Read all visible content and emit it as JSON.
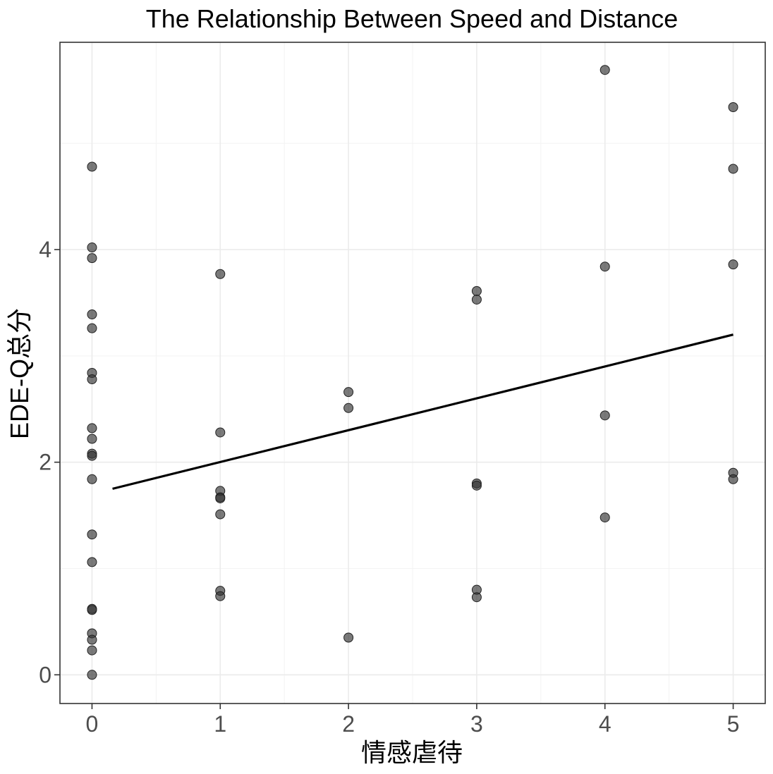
{
  "chart_data": {
    "type": "scatter",
    "title": "The Relationship Between Speed and Distance",
    "xlabel": "情感虐待",
    "ylabel": "EDE-Q总分",
    "xlim": [
      -0.25,
      5.25
    ],
    "ylim": [
      -0.27,
      5.95
    ],
    "x_ticks": [
      0,
      1,
      2,
      3,
      4,
      5
    ],
    "y_ticks": [
      0,
      2,
      4
    ],
    "x_tick_labels": [
      "0",
      "1",
      "2",
      "3",
      "4",
      "5"
    ],
    "y_tick_labels": [
      "0",
      "2",
      "4"
    ],
    "grid": true,
    "points": [
      {
        "x": 0,
        "y": 4.78
      },
      {
        "x": 0,
        "y": 4.02
      },
      {
        "x": 0,
        "y": 3.92
      },
      {
        "x": 0,
        "y": 3.39
      },
      {
        "x": 0,
        "y": 3.26
      },
      {
        "x": 0,
        "y": 2.84
      },
      {
        "x": 0,
        "y": 2.78
      },
      {
        "x": 0,
        "y": 2.32
      },
      {
        "x": 0,
        "y": 2.22
      },
      {
        "x": 0,
        "y": 2.08
      },
      {
        "x": 0,
        "y": 2.06
      },
      {
        "x": 0,
        "y": 1.84
      },
      {
        "x": 0,
        "y": 1.32
      },
      {
        "x": 0,
        "y": 1.06
      },
      {
        "x": 0,
        "y": 0.62
      },
      {
        "x": 0,
        "y": 0.61
      },
      {
        "x": 0,
        "y": 0.39
      },
      {
        "x": 0,
        "y": 0.33
      },
      {
        "x": 0,
        "y": 0.23
      },
      {
        "x": 0,
        "y": 0.0
      },
      {
        "x": 1,
        "y": 3.77
      },
      {
        "x": 1,
        "y": 2.28
      },
      {
        "x": 1,
        "y": 1.73
      },
      {
        "x": 1,
        "y": 1.67
      },
      {
        "x": 1,
        "y": 1.66
      },
      {
        "x": 1,
        "y": 1.51
      },
      {
        "x": 1,
        "y": 0.79
      },
      {
        "x": 1,
        "y": 0.74
      },
      {
        "x": 2,
        "y": 2.66
      },
      {
        "x": 2,
        "y": 2.51
      },
      {
        "x": 2,
        "y": 0.35
      },
      {
        "x": 3,
        "y": 3.61
      },
      {
        "x": 3,
        "y": 3.53
      },
      {
        "x": 3,
        "y": 1.8
      },
      {
        "x": 3,
        "y": 1.78
      },
      {
        "x": 3,
        "y": 0.8
      },
      {
        "x": 3,
        "y": 0.73
      },
      {
        "x": 4,
        "y": 5.69
      },
      {
        "x": 4,
        "y": 3.84
      },
      {
        "x": 4,
        "y": 2.44
      },
      {
        "x": 4,
        "y": 1.48
      },
      {
        "x": 5,
        "y": 5.34
      },
      {
        "x": 5,
        "y": 4.76
      },
      {
        "x": 5,
        "y": 3.86
      },
      {
        "x": 5,
        "y": 1.9
      },
      {
        "x": 5,
        "y": 1.84
      }
    ],
    "fit_line": {
      "x": [
        0.16,
        5.0
      ],
      "y": [
        1.75,
        3.2
      ]
    }
  }
}
